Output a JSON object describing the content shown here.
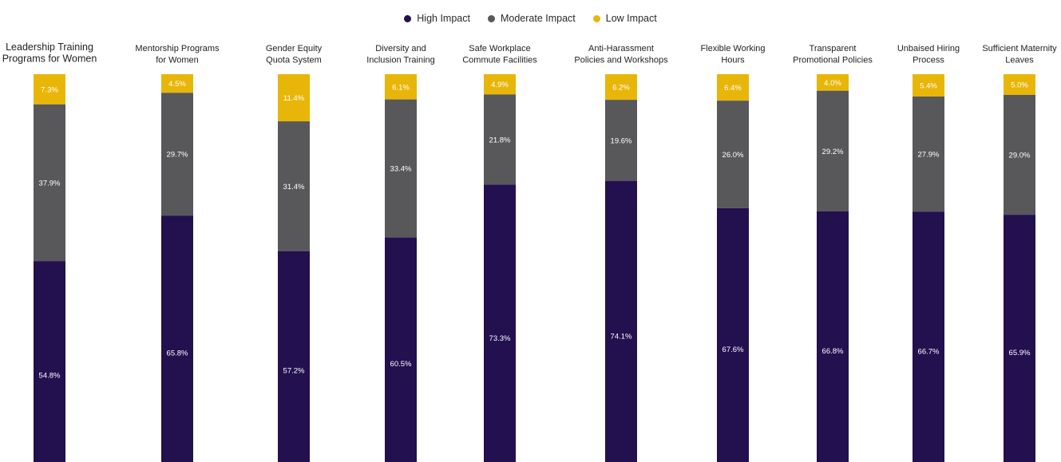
{
  "chart_data": {
    "type": "bar",
    "stacked": true,
    "orientation": "vertical",
    "value_format": "percent",
    "categories": [
      "Leadership Training Programs for Women",
      "Mentorship Programs for Women",
      "Gender Equity Quota System",
      "Diversity and Inclusion Training",
      "Safe Workplace Commute Facilities",
      "Anti-Harassment Policies and Workshops",
      "Flexible Working Hours",
      "Transparent Promotional Policies",
      "Unbaised Hiring Process",
      "Sufficient Maternity Leaves"
    ],
    "category_label_lines": [
      [
        "Leadership Training",
        "Programs for Women"
      ],
      [
        "Mentorship Programs",
        "for Women"
      ],
      [
        "Gender Equity",
        "Quota System"
      ],
      [
        "Diversity and",
        "Inclusion Training"
      ],
      [
        "Safe Workplace",
        "Commute Facilities"
      ],
      [
        "Anti-Harassment",
        "Policies and Workshops"
      ],
      [
        "Flexible Working",
        "Hours"
      ],
      [
        "Transparent",
        "Promotional Policies"
      ],
      [
        "Unbaised Hiring",
        "Process"
      ],
      [
        "Sufficient Maternity",
        "Leaves"
      ]
    ],
    "series": [
      {
        "name": "High Impact",
        "color": "#22104f",
        "values": [
          54.8,
          65.8,
          57.2,
          60.5,
          73.3,
          74.1,
          67.6,
          66.8,
          66.7,
          65.9
        ]
      },
      {
        "name": "Moderate Impact",
        "color": "#58585a",
        "values": [
          37.9,
          29.7,
          31.4,
          33.4,
          21.8,
          19.6,
          26.0,
          29.2,
          27.9,
          29.0
        ]
      },
      {
        "name": "Low Impact",
        "color": "#e8b609",
        "values": [
          7.3,
          4.5,
          11.4,
          6.1,
          4.9,
          6.2,
          6.4,
          4.0,
          5.4,
          5.0
        ]
      }
    ],
    "labels": [
      [
        "54.8%",
        "37.9%",
        "7.3%"
      ],
      [
        "65.8%",
        "29.7%",
        "4.5%"
      ],
      [
        "57.2%",
        "31.4%",
        "11.4%"
      ],
      [
        "60.5%",
        "33.4%",
        "6.1%"
      ],
      [
        "73.3%",
        "21.8%",
        "4.9%"
      ],
      [
        "74.1%",
        "19.6%",
        "6.2%"
      ],
      [
        "67.6%",
        "26.0%",
        "6.4%"
      ],
      [
        "66.8%",
        "29.2%",
        "4.0%"
      ],
      [
        "66.7%",
        "27.9%",
        "5.4%"
      ],
      [
        "65.9%",
        "29.0%",
        "5.0%"
      ]
    ],
    "legend_position": "top-center",
    "grid": false,
    "ylim": [
      0,
      100
    ]
  }
}
